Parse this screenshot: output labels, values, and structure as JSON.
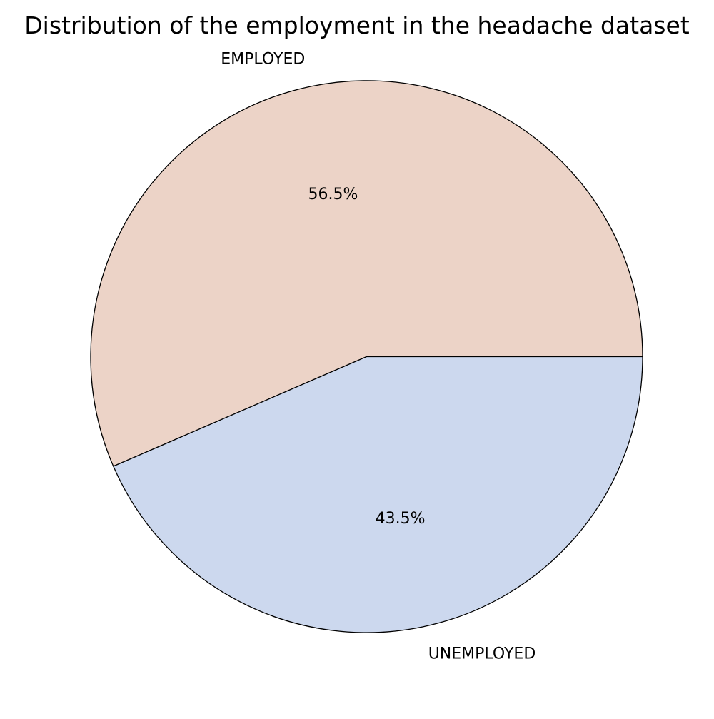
{
  "chart_data": {
    "type": "pie",
    "title": "Distribution of the employment in the headache dataset",
    "categories": [
      "EMPLOYED",
      "UNEMPLOYED"
    ],
    "values": [
      56.5,
      43.5
    ],
    "value_labels": [
      "56.5%",
      "43.5%"
    ],
    "colors": [
      "#ecd3c7",
      "#ccd8ee"
    ],
    "start_angle_deg": 0,
    "direction": "counterclockwise",
    "edge_color": "#000000"
  }
}
